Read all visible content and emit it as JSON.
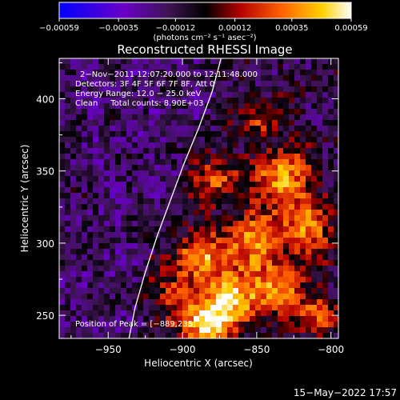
{
  "chart_data": {
    "type": "heatmap",
    "title": "Reconstructed RHESSI Image",
    "xlabel": "Heliocentric X (arcsec)",
    "ylabel": "Heliocentric Y (arcsec)",
    "xlim": [
      -983,
      -795
    ],
    "ylim": [
      234,
      428
    ],
    "x_ticks": [
      -950,
      -900,
      -850,
      -800
    ],
    "x_tick_labels": [
      "−950",
      "−900",
      "−850",
      "−800"
    ],
    "y_ticks": [
      250,
      300,
      350,
      400
    ],
    "y_tick_labels": [
      "250",
      "300",
      "350",
      "400"
    ],
    "colorbar": {
      "ticks": [
        -0.00059,
        -0.00035,
        -0.00012,
        0.00012,
        0.00035,
        0.00059
      ],
      "tick_labels": [
        "−0.00059",
        "−0.00035",
        "−0.00012",
        "0.00012",
        "0.00035",
        "0.00059"
      ],
      "unit_label": "(photons cm⁻² s⁻¹ asec⁻²)",
      "range": [
        -0.00059,
        0.00059
      ],
      "colors": [
        "#0000ff",
        "#6a00c8",
        "#3c1450",
        "#000000",
        "#b40000",
        "#ff6000",
        "#ffd000",
        "#ffffff"
      ]
    },
    "annotations": [
      "2−Nov−2011 12:07:20.000 to 12:11:48.000",
      "Detectors: 3F 4F 5F 6F 7F 8F, Att 0",
      "Energy Range: 12.0 − 25.0 keV",
      "Clean     Total counts: 8.90E+03"
    ],
    "peak_label": "Position of Peak = [−889,235]",
    "peak_position": [
      -889,
      235
    ],
    "limb_curve": [
      [
        -936,
        234
      ],
      [
        -932,
        255
      ],
      [
        -925,
        280
      ],
      [
        -917,
        305
      ],
      [
        -908,
        330
      ],
      [
        -899,
        355
      ],
      [
        -889,
        380
      ],
      [
        -880,
        405
      ],
      [
        -874,
        428
      ]
    ],
    "bright_regions": [
      {
        "x": -884,
        "y": 244,
        "r": 12,
        "v": 0.00059
      },
      {
        "x": -864,
        "y": 262,
        "r": 14,
        "v": 0.0005
      },
      {
        "x": -890,
        "y": 290,
        "r": 13,
        "v": 0.00042
      },
      {
        "x": -850,
        "y": 300,
        "r": 16,
        "v": 0.00045
      },
      {
        "x": -832,
        "y": 345,
        "r": 13,
        "v": 0.00052
      },
      {
        "x": -815,
        "y": 310,
        "r": 12,
        "v": 0.0004
      },
      {
        "x": -878,
        "y": 345,
        "r": 11,
        "v": 0.00035
      },
      {
        "x": -845,
        "y": 385,
        "r": 9,
        "v": 0.0003
      },
      {
        "x": -830,
        "y": 265,
        "r": 11,
        "v": 0.00038
      },
      {
        "x": -905,
        "y": 262,
        "r": 9,
        "v": 0.0003
      },
      {
        "x": -810,
        "y": 250,
        "r": 9,
        "v": 0.00035
      }
    ]
  },
  "footer": {
    "date": "15−May−2022 17:57"
  }
}
